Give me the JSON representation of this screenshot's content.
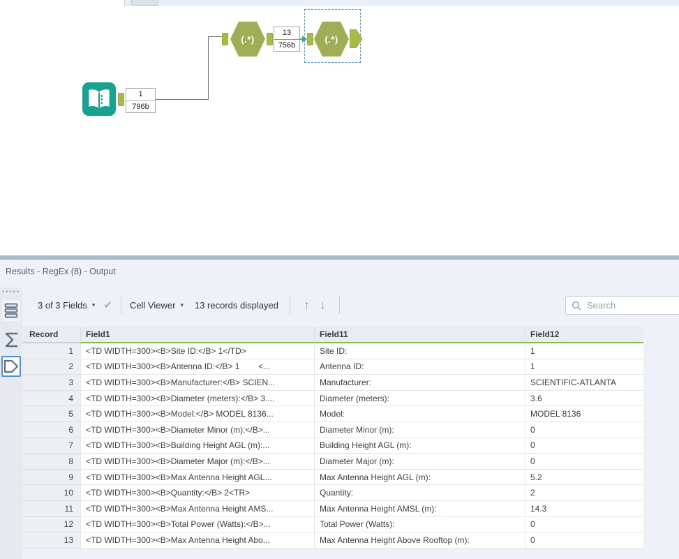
{
  "top_panel": {
    "note": "bottom edge of panel above canvas"
  },
  "canvas": {
    "input_tool": {
      "annotation_count": "1",
      "annotation_size": "796b"
    },
    "regex_tool_1": {
      "label": "(.*)",
      "annotation_count": "13",
      "annotation_size": "756b"
    },
    "regex_tool_2": {
      "label": "(.*)",
      "selected": true
    },
    "colors": {
      "input_tool_teal": "#16a392",
      "regex_olive": "#9fae54",
      "anchor_olive": "#a9ba45",
      "wire_grey": "#6e6e6e",
      "wire_highlight_teal": "#2fae9d",
      "selection_blue": "#4f93d6"
    }
  },
  "results": {
    "title": "Results - RegEx (8) - Output",
    "toolbar": {
      "fields_label": "3 of 3 Fields",
      "cell_viewer_label": "Cell Viewer",
      "records_label": "13 records displayed",
      "up_arrow": "↑",
      "down_arrow": "↓",
      "check": "✔",
      "caret": "▾"
    },
    "search": {
      "placeholder": "Search"
    },
    "table": {
      "columns": [
        "Record",
        "Field1",
        "Field11",
        "Field12"
      ],
      "header_underline_green": "#7cc142",
      "rows": [
        {
          "record": "1",
          "field1": "<TD WIDTH=300><B>Site ID:</B> 1</TD>",
          "field11": "Site ID:",
          "field12": "1"
        },
        {
          "record": "2",
          "field1": "<TD WIDTH=300><B>Antenna ID:</B> 1        <...",
          "field11": "Antenna ID:",
          "field12": "1"
        },
        {
          "record": "3",
          "field1": "<TD WIDTH=300><B>Manufacturer:</B> SCIEN...",
          "field11": "Manufacturer:",
          "field12": "SCIENTIFIC-ATLANTA"
        },
        {
          "record": "4",
          "field1": "<TD WIDTH=300><B>Diameter (meters):</B> 3....",
          "field11": "Diameter (meters):",
          "field12": "3.6"
        },
        {
          "record": "5",
          "field1": "<TD WIDTH=300><B>Model:</B> MODEL 8136...",
          "field11": "Model:",
          "field12": "MODEL 8136"
        },
        {
          "record": "6",
          "field1": "<TD WIDTH=300><B>Diameter Minor (m):</B>...",
          "field11": "Diameter Minor (m):",
          "field12": "0"
        },
        {
          "record": "7",
          "field1": "<TD WIDTH=300><B>Building Height AGL (m):...",
          "field11": "Building Height AGL (m):",
          "field12": "0"
        },
        {
          "record": "8",
          "field1": "<TD WIDTH=300><B>Diameter Major (m):</B>...",
          "field11": "Diameter Major (m):",
          "field12": "0"
        },
        {
          "record": "9",
          "field1": "<TD WIDTH=300><B>Max Antenna Height AGL...",
          "field11": "Max Antenna Height AGL (m):",
          "field12": "5.2"
        },
        {
          "record": "10",
          "field1": "<TD WIDTH=300><B>Quantity:</B> 2<TR>",
          "field11": "Quantity:",
          "field12": "2"
        },
        {
          "record": "11",
          "field1": "<TD WIDTH=300><B>Max Antenna Height AMS...",
          "field11": "Max Antenna Height AMSL (m):",
          "field12": "14.3"
        },
        {
          "record": "12",
          "field1": "<TD WIDTH=300><B>Total Power (Watts):</B>...",
          "field11": "Total Power (Watts):",
          "field12": "0"
        },
        {
          "record": "13",
          "field1": "<TD WIDTH=300><B>Max Antenna Height Abo...",
          "field11": "Max Antenna Height Above Rooftop (m):",
          "field12": "0"
        }
      ]
    }
  }
}
